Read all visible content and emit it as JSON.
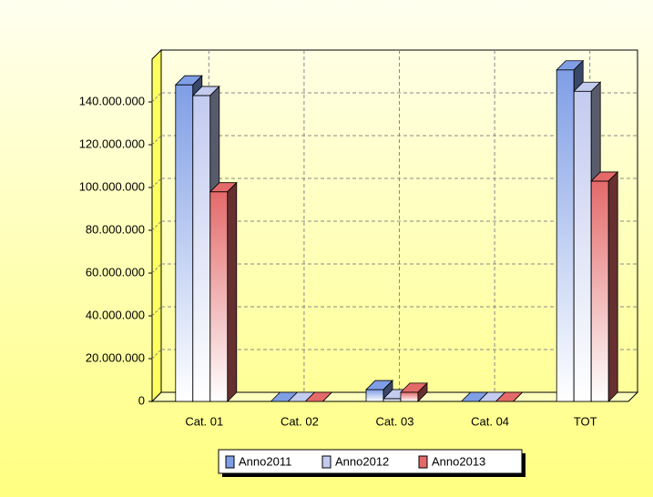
{
  "chart_data": {
    "type": "bar3d",
    "categories": [
      "Cat. 01",
      "Cat. 02",
      "Cat. 03",
      "Cat. 04",
      "TOT"
    ],
    "series": [
      {
        "name": "Anno2011",
        "color": "#7f9ee6",
        "values": [
          148000000,
          0,
          5500000,
          0,
          155000000
        ]
      },
      {
        "name": "Anno2012",
        "color": "#c3cbef",
        "values": [
          143000000,
          0,
          1300000,
          0,
          145000000
        ]
      },
      {
        "name": "Anno2013",
        "color": "#e46a6a",
        "values": [
          98000000,
          0,
          4300000,
          0,
          103000000
        ]
      }
    ],
    "ylim": [
      0,
      160000000
    ],
    "yticks": [
      0,
      {
        "value": 20000000,
        "label": "20.000.000"
      },
      {
        "value": 40000000,
        "label": "40.000.000"
      },
      {
        "value": 60000000,
        "label": "60.000.000"
      },
      {
        "value": 80000000,
        "label": "80.000.000"
      },
      {
        "value": 100000000,
        "label": "100.000.000"
      },
      {
        "value": 120000000,
        "label": "120.000.000"
      },
      {
        "value": 140000000,
        "label": "140.000.000"
      }
    ],
    "grid": true,
    "legend": "bottom"
  }
}
